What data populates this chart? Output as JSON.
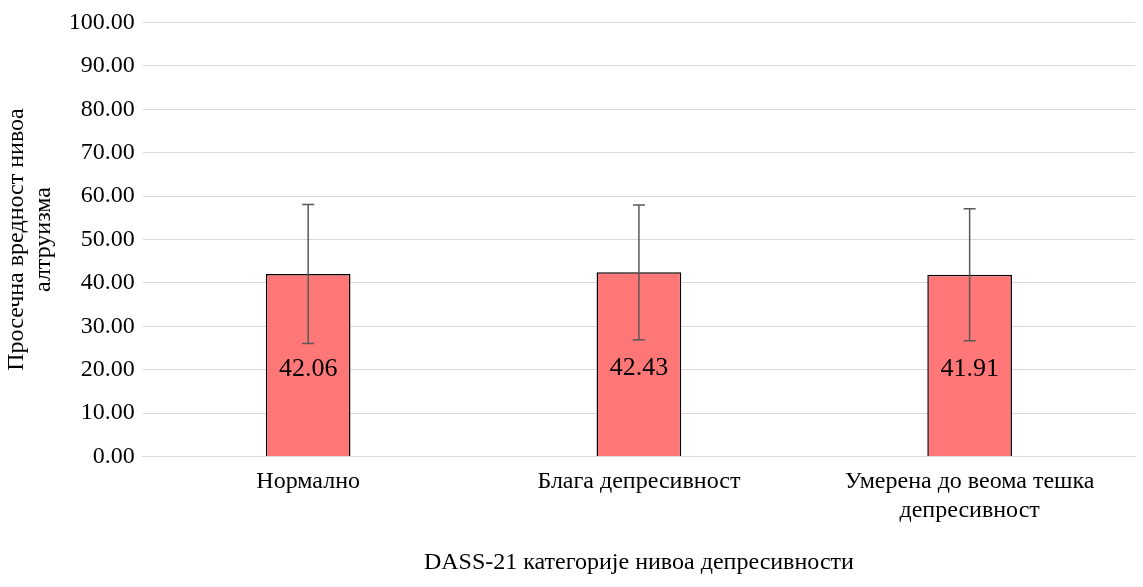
{
  "chart_data": {
    "type": "bar",
    "xlabel": "DASS-21 категорије нивоа депресивности",
    "ylabel": "Просечна вредност нивоа алтруизма",
    "categories": [
      "Нормално",
      "Блага депресивност",
      "Умерена до веома тешка депресивност"
    ],
    "values": [
      42.06,
      42.43,
      41.91
    ],
    "color": "#ff7777",
    "errors": [
      16,
      15.5,
      15.2
    ],
    "data_labels": true,
    "ylim": [
      0,
      100
    ],
    "yticks": [
      {
        "value": 0,
        "label": "0.00"
      },
      {
        "value": 10,
        "label": "10.00"
      },
      {
        "value": 20,
        "label": "20.00"
      },
      {
        "value": 30,
        "label": "30.00"
      },
      {
        "value": 40,
        "label": "40.00"
      },
      {
        "value": 50,
        "label": "50.00"
      },
      {
        "value": 60,
        "label": "60.00"
      },
      {
        "value": 70,
        "label": "70.00"
      },
      {
        "value": 80,
        "label": "80.00"
      },
      {
        "value": 90,
        "label": "90.00"
      },
      {
        "value": 100,
        "label": "100.00"
      }
    ],
    "grid": "y"
  }
}
